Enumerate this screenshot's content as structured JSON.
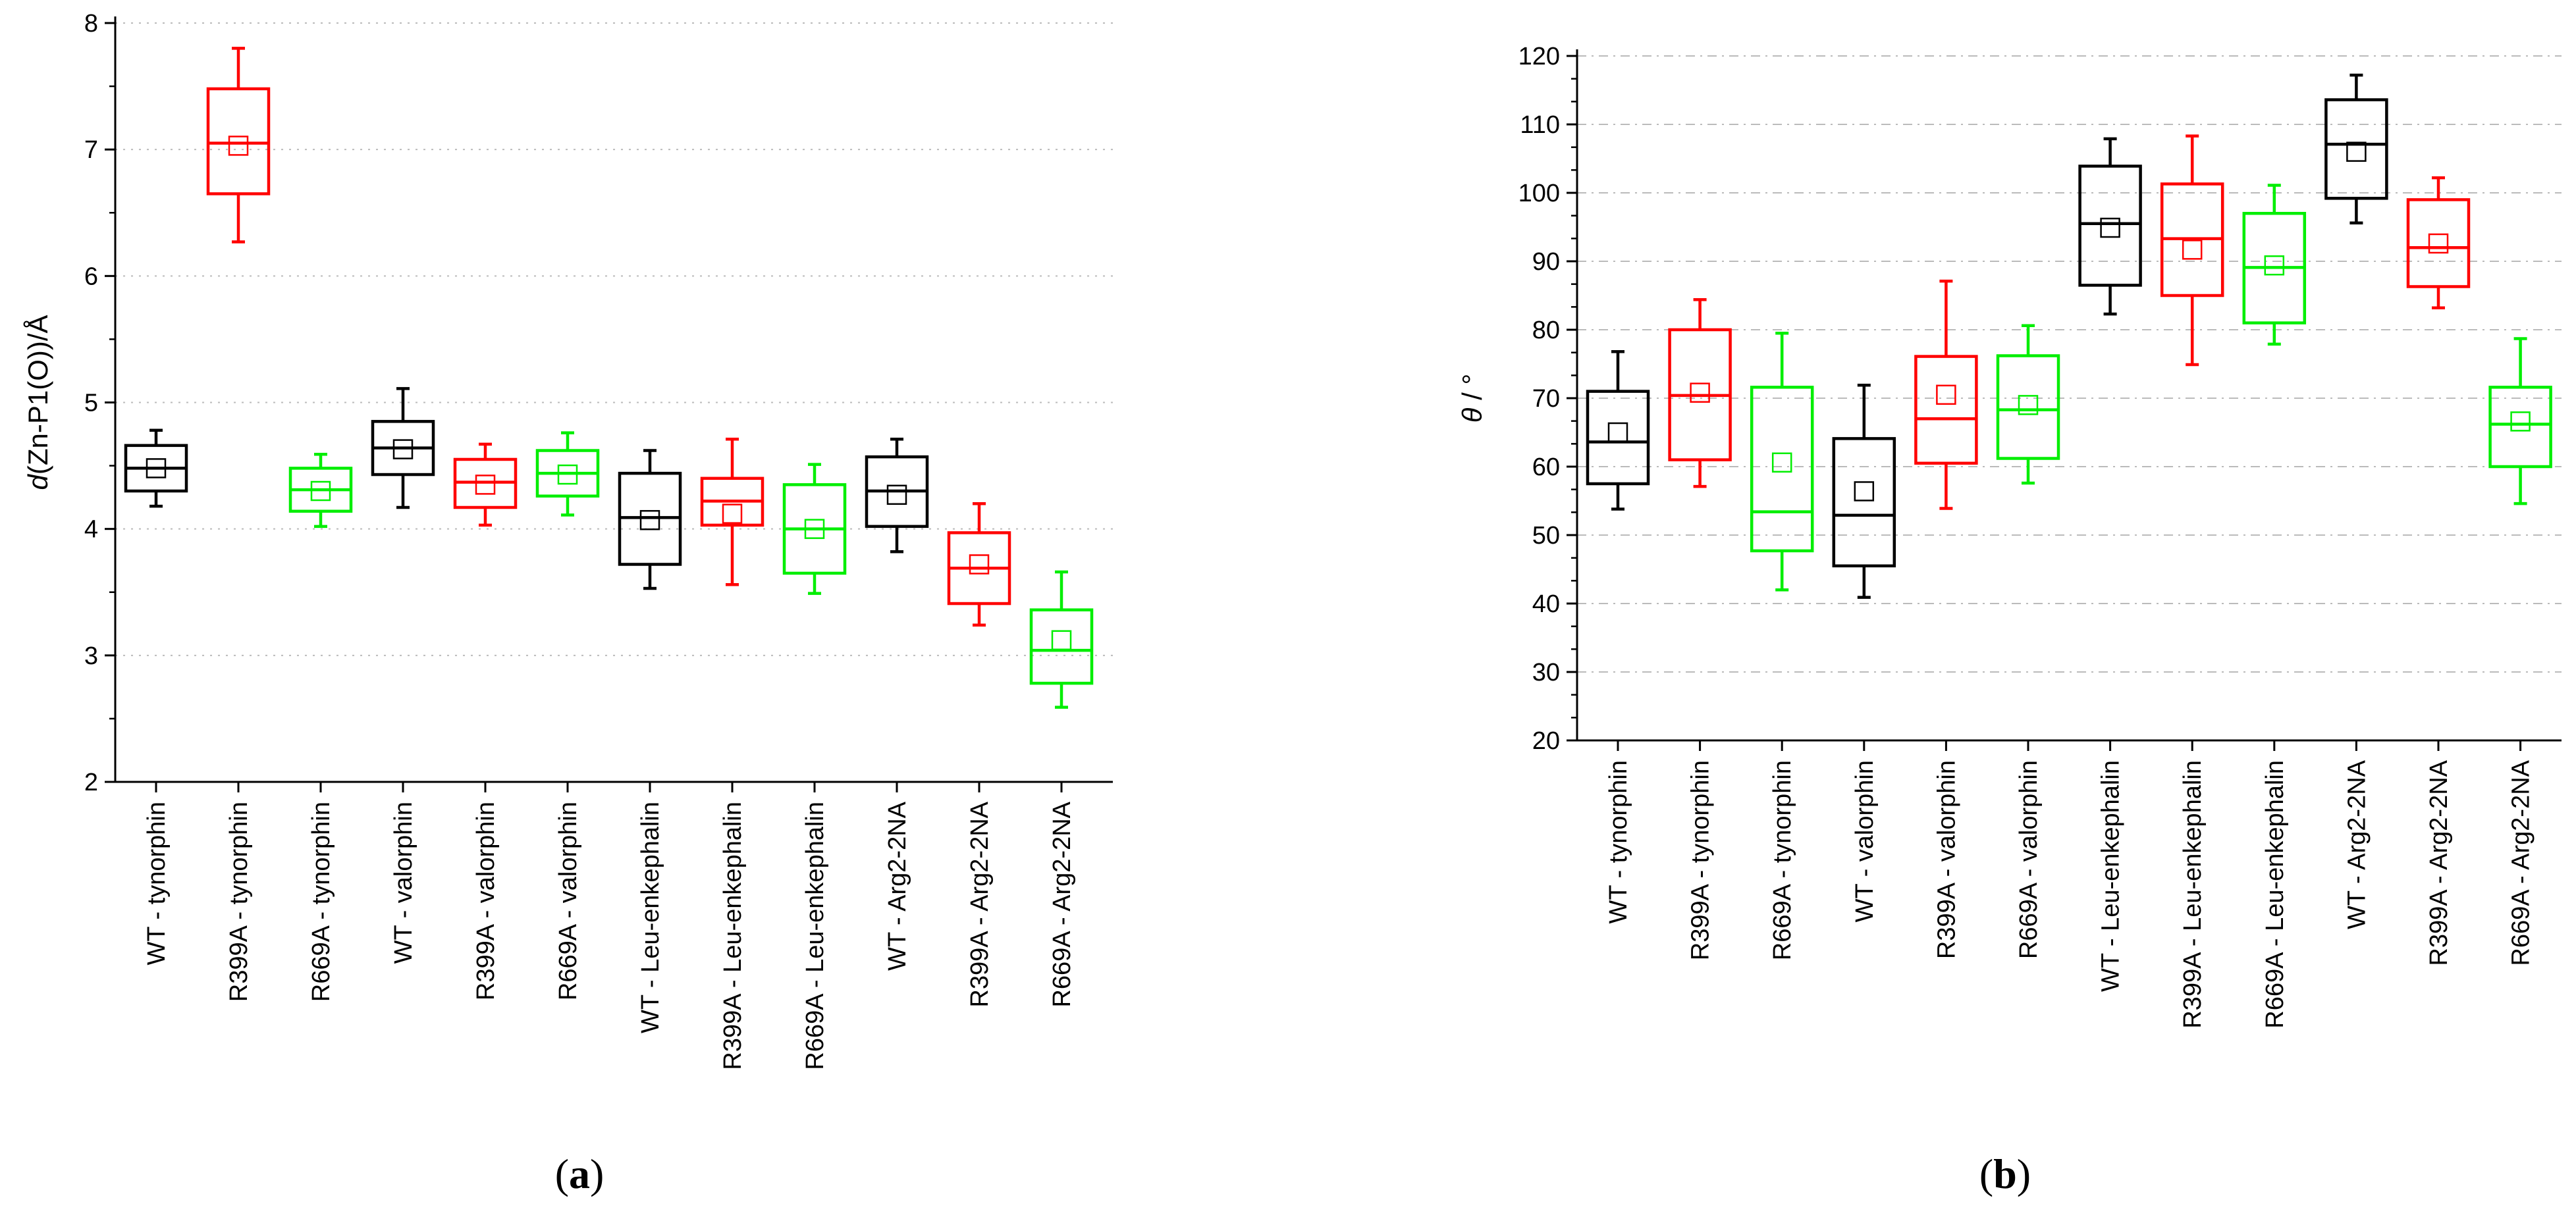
{
  "chart_data": [
    {
      "type": "box",
      "panel_label": "(a)",
      "ylabel": "d(Zn-P1(O))/Å",
      "ylabel_parts": {
        "italic": "d",
        "rest": "(Zn-P1(O))/Å"
      },
      "ylim": [
        2,
        8
      ],
      "yticks": [
        "2",
        "3",
        "4",
        "5",
        "6",
        "7",
        "8"
      ],
      "grid": "dotted-horizontal",
      "categories": [
        "WT - tynorphin",
        "R399A - tynorphin",
        "R669A - tynorphin",
        "WT - valorphin",
        "R399A - valorphin",
        "R669A - valorphin",
        "WT - Leu-enkephalin",
        "R399A - Leu-enkephalin",
        "R669A - Leu-enkephalin",
        "WT - Arg2-2NA",
        "R399A - Arg2-2NA",
        "R669A - Arg2-2NA"
      ],
      "colors": [
        "#000000",
        "#ff0000",
        "#00ee00",
        "#000000",
        "#ff0000",
        "#00ee00",
        "#000000",
        "#ff0000",
        "#00ee00",
        "#000000",
        "#ff0000",
        "#00ee00"
      ],
      "boxes": [
        {
          "whisker_low": 4.18,
          "q1": 4.3,
          "median": 4.48,
          "q3": 4.66,
          "whisker_high": 4.78,
          "mean": 4.48
        },
        {
          "whisker_low": 6.27,
          "q1": 6.65,
          "median": 7.05,
          "q3": 7.48,
          "whisker_high": 7.8,
          "mean": 7.03
        },
        {
          "whisker_low": 4.02,
          "q1": 4.14,
          "median": 4.31,
          "q3": 4.48,
          "whisker_high": 4.59,
          "mean": 4.3
        },
        {
          "whisker_low": 4.17,
          "q1": 4.43,
          "median": 4.64,
          "q3": 4.85,
          "whisker_high": 5.11,
          "mean": 4.63
        },
        {
          "whisker_low": 4.03,
          "q1": 4.17,
          "median": 4.37,
          "q3": 4.55,
          "whisker_high": 4.67,
          "mean": 4.35
        },
        {
          "whisker_low": 4.11,
          "q1": 4.26,
          "median": 4.44,
          "q3": 4.62,
          "whisker_high": 4.76,
          "mean": 4.43
        },
        {
          "whisker_low": 3.53,
          "q1": 3.72,
          "median": 4.09,
          "q3": 4.44,
          "whisker_high": 4.62,
          "mean": 4.07
        },
        {
          "whisker_low": 3.56,
          "q1": 4.03,
          "median": 4.22,
          "q3": 4.4,
          "whisker_high": 4.71,
          "mean": 4.12
        },
        {
          "whisker_low": 3.49,
          "q1": 3.65,
          "median": 4.0,
          "q3": 4.35,
          "whisker_high": 4.51,
          "mean": 4.0
        },
        {
          "whisker_low": 3.82,
          "q1": 4.02,
          "median": 4.3,
          "q3": 4.57,
          "whisker_high": 4.71,
          "mean": 4.27
        },
        {
          "whisker_low": 3.24,
          "q1": 3.41,
          "median": 3.69,
          "q3": 3.97,
          "whisker_high": 4.2,
          "mean": 3.72
        },
        {
          "whisker_low": 2.59,
          "q1": 2.78,
          "median": 3.04,
          "q3": 3.36,
          "whisker_high": 3.66,
          "mean": 3.12
        }
      ]
    },
    {
      "type": "box",
      "panel_label": "(b)",
      "ylabel": "θ / °",
      "ylabel_parts": {
        "italic": "θ",
        "rest": " / °"
      },
      "ylim": [
        20,
        120
      ],
      "yticks": [
        "20",
        "30",
        "40",
        "50",
        "60",
        "70",
        "80",
        "90",
        "100",
        "110",
        "120"
      ],
      "grid": "dash-dot-horizontal",
      "categories": [
        "WT - tynorphin",
        "R399A - tynorphin",
        "R669A - tynorphin",
        "WT - valorphin",
        "R399A - valorphin",
        "R669A - valorphin",
        "WT - Leu-enkephalin",
        "R399A - Leu-enkephalin",
        "R669A - Leu-enkephalin",
        "WT - Arg2-2NA",
        "R399A - Arg2-2NA",
        "R669A - Arg2-2NA"
      ],
      "colors": [
        "#000000",
        "#ff0000",
        "#00ee00",
        "#000000",
        "#ff0000",
        "#00ee00",
        "#000000",
        "#ff0000",
        "#00ee00",
        "#000000",
        "#ff0000",
        "#00ee00"
      ],
      "boxes": [
        {
          "whisker_low": 53.8,
          "q1": 57.5,
          "median": 63.6,
          "q3": 71.0,
          "whisker_high": 76.8,
          "mean": 65.0
        },
        {
          "whisker_low": 57.1,
          "q1": 61.0,
          "median": 70.4,
          "q3": 80.0,
          "whisker_high": 84.4,
          "mean": 70.8
        },
        {
          "whisker_low": 42.0,
          "q1": 47.7,
          "median": 53.4,
          "q3": 71.6,
          "whisker_high": 79.5,
          "mean": 60.6
        },
        {
          "whisker_low": 40.9,
          "q1": 45.5,
          "median": 52.9,
          "q3": 64.1,
          "whisker_high": 71.9,
          "mean": 56.4
        },
        {
          "whisker_low": 53.9,
          "q1": 60.5,
          "median": 67.0,
          "q3": 76.1,
          "whisker_high": 87.1,
          "mean": 70.5
        },
        {
          "whisker_low": 57.6,
          "q1": 61.2,
          "median": 68.3,
          "q3": 76.2,
          "whisker_high": 80.6,
          "mean": 69.0
        },
        {
          "whisker_low": 82.3,
          "q1": 86.5,
          "median": 95.5,
          "q3": 103.9,
          "whisker_high": 107.9,
          "mean": 94.9
        },
        {
          "whisker_low": 74.9,
          "q1": 85.0,
          "median": 93.3,
          "q3": 101.3,
          "whisker_high": 108.3,
          "mean": 91.7
        },
        {
          "whisker_low": 77.9,
          "q1": 81.0,
          "median": 89.1,
          "q3": 97.0,
          "whisker_high": 101.1,
          "mean": 89.4
        },
        {
          "whisker_low": 95.6,
          "q1": 99.2,
          "median": 107.1,
          "q3": 113.6,
          "whisker_high": 117.2,
          "mean": 106.0
        },
        {
          "whisker_low": 83.2,
          "q1": 86.3,
          "median": 92.0,
          "q3": 99.0,
          "whisker_high": 102.2,
          "mean": 92.6
        },
        {
          "whisker_low": 54.6,
          "q1": 60.0,
          "median": 66.2,
          "q3": 71.6,
          "whisker_high": 78.7,
          "mean": 66.6
        }
      ]
    }
  ]
}
